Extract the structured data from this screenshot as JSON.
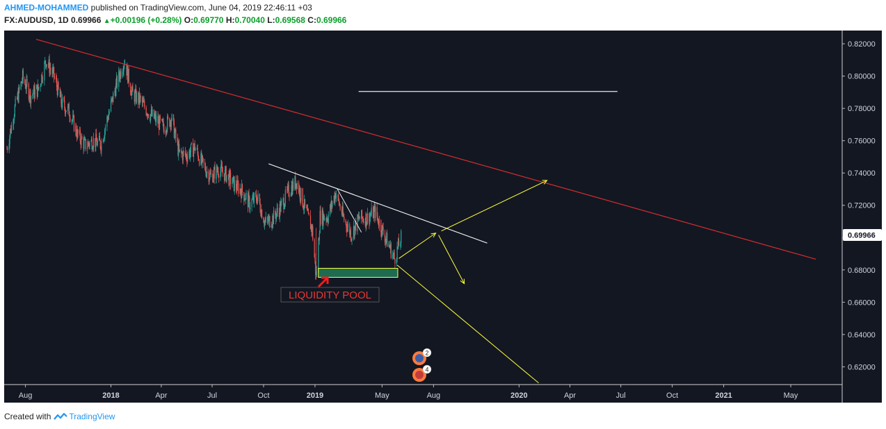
{
  "header": {
    "author": "AHMED-MOHAMMED",
    "published": "published on TradingView.com, June 04, 2019 22:46:11 +03",
    "symbol": "FX:AUDUSD, 1D",
    "last": "0.69966",
    "change": "+0.00196 (+0.28%)",
    "o_label": "O:",
    "o": "0.69770",
    "h_label": "H:",
    "h": "0.70040",
    "l_label": "L:",
    "l": "0.69568",
    "c_label": "C:",
    "c": "0.69966"
  },
  "footer": {
    "created_with": "Created with",
    "brand": "TradingView"
  },
  "annotation": {
    "label": "LIQUIDITY POOL"
  },
  "events": [
    {
      "count": "2"
    },
    {
      "count": "4"
    }
  ],
  "colors": {
    "background": "#131722",
    "up": "#26a69a",
    "down": "#ef5350",
    "red_line": "#d32f2f",
    "white_line": "#e8e8e8",
    "yellow": "#ffff3b",
    "zone_fill": "#1f6b52",
    "price_tag": "#ffffff"
  },
  "chart_data": {
    "type": "candlestick",
    "symbol": "FX:AUDUSD",
    "timeframe": "1D",
    "y_ticks": [
      "0.82000",
      "0.80000",
      "0.78000",
      "0.76000",
      "0.74000",
      "0.72000",
      "0.70000",
      "0.68000",
      "0.66000",
      "0.64000",
      "0.62000"
    ],
    "x_ticks": [
      "Aug",
      "2018",
      "Apr",
      "Jul",
      "Oct",
      "2019",
      "May",
      "Aug",
      "2020",
      "Apr",
      "Jul",
      "Oct",
      "2021",
      "May"
    ],
    "ylim": [
      0.609,
      0.8282
    ],
    "last_price": "0.69966",
    "close_path": [
      [
        "2017-06-29",
        0.755
      ],
      [
        "2017-07-13",
        0.78
      ],
      [
        "2017-07-27",
        0.799
      ],
      [
        "2017-08-10",
        0.788
      ],
      [
        "2017-08-24",
        0.792
      ],
      [
        "2017-09-07",
        0.81
      ],
      [
        "2017-09-21",
        0.8
      ],
      [
        "2017-10-05",
        0.783
      ],
      [
        "2017-10-19",
        0.778
      ],
      [
        "2017-11-02",
        0.764
      ],
      [
        "2017-11-16",
        0.757
      ],
      [
        "2017-11-30",
        0.76
      ],
      [
        "2017-12-14",
        0.758
      ],
      [
        "2017-12-28",
        0.777
      ],
      [
        "2018-01-11",
        0.795
      ],
      [
        "2018-01-25",
        0.81
      ],
      [
        "2018-02-08",
        0.789
      ],
      [
        "2018-02-22",
        0.785
      ],
      [
        "2018-03-08",
        0.778
      ],
      [
        "2018-03-22",
        0.773
      ],
      [
        "2018-04-05",
        0.768
      ],
      [
        "2018-04-19",
        0.774
      ],
      [
        "2018-05-03",
        0.752
      ],
      [
        "2018-05-17",
        0.751
      ],
      [
        "2018-05-31",
        0.756
      ],
      [
        "2018-06-14",
        0.745
      ],
      [
        "2018-06-28",
        0.738
      ],
      [
        "2018-07-12",
        0.742
      ],
      [
        "2018-07-26",
        0.739
      ],
      [
        "2018-08-09",
        0.733
      ],
      [
        "2018-08-23",
        0.729
      ],
      [
        "2018-09-06",
        0.721
      ],
      [
        "2018-09-20",
        0.725
      ],
      [
        "2018-10-04",
        0.709
      ],
      [
        "2018-10-18",
        0.712
      ],
      [
        "2018-11-01",
        0.719
      ],
      [
        "2018-11-15",
        0.729
      ],
      [
        "2018-11-29",
        0.735
      ],
      [
        "2018-12-13",
        0.719
      ],
      [
        "2018-12-27",
        0.705
      ],
      [
        "2019-01-03",
        0.675
      ],
      [
        "2019-01-10",
        0.713
      ],
      [
        "2019-01-24",
        0.713
      ],
      [
        "2019-02-07",
        0.728
      ],
      [
        "2019-02-21",
        0.712
      ],
      [
        "2019-03-07",
        0.702
      ],
      [
        "2019-03-21",
        0.712
      ],
      [
        "2019-04-04",
        0.712
      ],
      [
        "2019-04-18",
        0.716
      ],
      [
        "2019-05-02",
        0.704
      ],
      [
        "2019-05-16",
        0.693
      ],
      [
        "2019-05-23",
        0.687
      ],
      [
        "2019-06-04",
        0.6997
      ]
    ],
    "annotations": {
      "red_trendline": [
        [
          "2017-08-20",
          0.8228
        ],
        [
          "2021-06-15",
          0.6866
        ]
      ],
      "white_horizontal": [
        [
          "2019-03-20",
          0.7905
        ],
        [
          "2020-06-25",
          0.7905
        ]
      ],
      "white_trendline": [
        [
          "2018-10-10",
          0.7457
        ],
        [
          "2019-11-05",
          0.6966
        ]
      ],
      "white_short": [
        [
          "2019-02-10",
          0.73
        ],
        [
          "2019-03-25",
          0.7033
        ]
      ],
      "liquidity_zone": [
        [
          "2019-01-07",
          "2019-05-29"
        ],
        [
          0.6754,
          0.681
        ]
      ],
      "arrow_up_1": [
        [
          "2019-05-31",
          0.6871
        ],
        [
          "2019-08-05",
          0.7028
        ]
      ],
      "arrow_up_2": [
        [
          "2019-08-15",
          0.7041
        ],
        [
          "2020-02-20",
          0.7354
        ]
      ],
      "arrow_down_1": [
        [
          "2019-08-10",
          0.7016
        ],
        [
          "2019-09-25",
          0.6715
        ]
      ],
      "arrow_down_2": [
        [
          "2019-05-28",
          0.683
        ],
        [
          "2020-02-05",
          0.61
        ]
      ]
    }
  }
}
